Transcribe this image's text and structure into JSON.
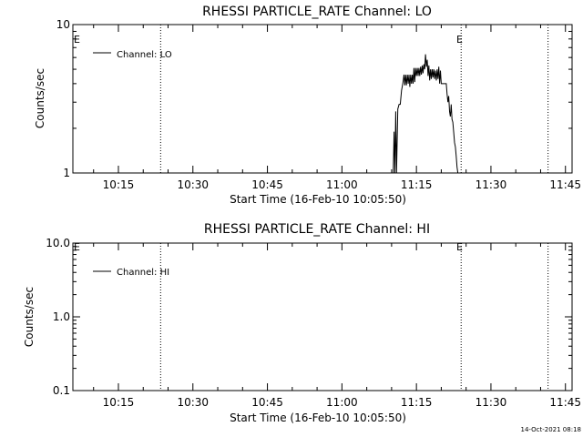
{
  "footer": {
    "timestamp": "14-Oct-2021 08:18"
  },
  "chart_data": [
    {
      "type": "line",
      "title": "RHESSI PARTICLE_RATE Channel: LO",
      "xlabel": "Start Time (16-Feb-10 10:05:50)",
      "ylabel": "Counts/sec",
      "yscale": "log",
      "ylim": [
        1,
        10
      ],
      "xlim": [
        "10:05:50",
        "11:46:20"
      ],
      "yticks": [
        {
          "label": "1",
          "value": 1
        },
        {
          "label": "10",
          "value": 10
        }
      ],
      "xticks": [
        "10:15",
        "10:30",
        "10:45",
        "11:00",
        "11:15",
        "11:30",
        "11:45"
      ],
      "legend": {
        "position": "top-left",
        "entries": [
          "Channel: LO"
        ]
      },
      "vlines": [
        {
          "x": "10:23:30",
          "label": ""
        },
        {
          "x": "11:24:00",
          "label": "E"
        },
        {
          "x": "11:41:30",
          "label": ""
        }
      ],
      "corner_label": "E",
      "series": [
        {
          "name": "Channel: LO",
          "x": [
            "11:10:20",
            "11:10:30",
            "11:10:40",
            "11:10:50",
            "11:11:00",
            "11:11:15",
            "11:11:30",
            "11:11:45",
            "11:12:00",
            "11:12:15",
            "11:12:30",
            "11:12:40",
            "11:12:50",
            "11:13:00",
            "11:13:10",
            "11:13:20",
            "11:13:30",
            "11:13:40",
            "11:13:50",
            "11:14:00",
            "11:14:10",
            "11:14:20",
            "11:14:30",
            "11:14:40",
            "11:14:50",
            "11:15:00",
            "11:15:10",
            "11:15:20",
            "11:15:30",
            "11:15:40",
            "11:15:50",
            "11:16:00",
            "11:16:10",
            "11:16:20",
            "11:16:30",
            "11:16:40",
            "11:16:50",
            "11:17:00",
            "11:17:10",
            "11:17:20",
            "11:17:30",
            "11:17:40",
            "11:17:50",
            "11:18:00",
            "11:18:10",
            "11:18:20",
            "11:18:30",
            "11:18:40",
            "11:18:50",
            "11:19:00",
            "11:19:10",
            "11:19:20",
            "11:19:30",
            "11:19:40",
            "11:19:50",
            "11:20:00",
            "11:20:20",
            "11:20:40",
            "11:21:00",
            "11:21:10",
            "11:21:20",
            "11:21:30",
            "11:21:40",
            "11:21:50",
            "11:22:00",
            "11:22:10",
            "11:22:20",
            "11:22:30",
            "11:22:40",
            "11:22:50",
            "11:23:00",
            "11:23:10",
            "11:23:20"
          ],
          "y": [
            1,
            1.9,
            1.0,
            2.6,
            1.0,
            2.7,
            2.9,
            2.9,
            3.6,
            4.0,
            4.6,
            3.9,
            4.6,
            3.9,
            4.6,
            4.0,
            4.6,
            3.8,
            4.6,
            4.0,
            4.6,
            4.0,
            5.1,
            4.1,
            5.1,
            4.5,
            5.1,
            4.5,
            5.1,
            4.5,
            5.2,
            4.6,
            5.3,
            4.7,
            5.4,
            5.0,
            6.3,
            5.2,
            5.8,
            4.5,
            5.3,
            4.2,
            5.0,
            4.3,
            5.0,
            4.4,
            5.0,
            4.3,
            4.9,
            4.2,
            5.0,
            4.3,
            5.2,
            4.0,
            4.9,
            4.0,
            4.0,
            4.0,
            4.0,
            3.4,
            3.0,
            3.3,
            2.6,
            2.4,
            2.9,
            2.3,
            2.2,
            1.9,
            1.6,
            1.5,
            1.3,
            1.1,
            1
          ]
        }
      ]
    },
    {
      "type": "line",
      "title": "RHESSI PARTICLE_RATE Channel: HI",
      "xlabel": "Start Time (16-Feb-10 10:05:50)",
      "ylabel": "Counts/sec",
      "yscale": "log",
      "ylim": [
        0.1,
        10
      ],
      "xlim": [
        "10:05:50",
        "11:46:20"
      ],
      "yticks": [
        {
          "label": "0.1",
          "value": 0.1
        },
        {
          "label": "1.0",
          "value": 1
        },
        {
          "label": "10.0",
          "value": 10
        }
      ],
      "xticks": [
        "10:15",
        "10:30",
        "10:45",
        "11:00",
        "11:15",
        "11:30",
        "11:45"
      ],
      "legend": {
        "position": "top-left",
        "entries": [
          "Channel: HI"
        ]
      },
      "vlines": [
        {
          "x": "10:23:30",
          "label": ""
        },
        {
          "x": "11:24:00",
          "label": "E"
        },
        {
          "x": "11:41:30",
          "label": ""
        }
      ],
      "corner_label": "E",
      "series": [
        {
          "name": "Channel: HI",
          "x": [],
          "y": []
        }
      ]
    }
  ]
}
